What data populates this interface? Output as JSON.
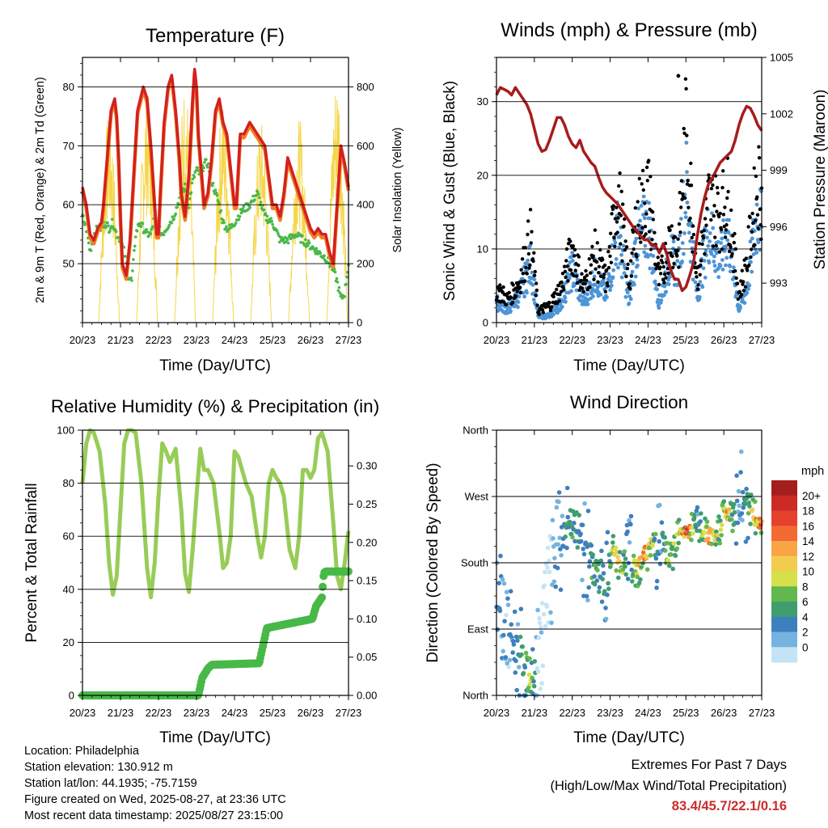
{
  "chart_data": [
    {
      "type": "line",
      "title": "Temperature (F)",
      "xlabel": "Time (Day/UTC)",
      "ylabel": "2m & 9m T (Red, Orange) & 2m Td (Green)",
      "y2label": "Solar Insolation (Yellow)",
      "x_ticks": [
        "20/23",
        "21/23",
        "22/23",
        "23/23",
        "24/23",
        "25/23",
        "26/23",
        "27/23"
      ],
      "xlim": [
        0,
        7
      ],
      "ylim": [
        40,
        85
      ],
      "y_ticks": [
        50,
        60,
        70,
        80
      ],
      "y2lim": [
        0,
        900
      ],
      "y2_ticks": [
        0,
        200,
        400,
        600,
        800
      ],
      "grid": "horizontal",
      "colors": {
        "t2m": "#d42020",
        "t9m": "#f08020",
        "td": "#48b848",
        "solar": "#f5d64a"
      },
      "series": [
        {
          "name": "2m T",
          "x": [
            0,
            0.1,
            0.2,
            0.3,
            0.4,
            0.5,
            0.55,
            0.65,
            0.75,
            0.85,
            0.9,
            0.95,
            1.0,
            1.05,
            1.15,
            1.25,
            1.35,
            1.45,
            1.6,
            1.7,
            1.8,
            1.9,
            1.95,
            2.0,
            2.05,
            2.15,
            2.25,
            2.35,
            2.45,
            2.55,
            2.6,
            2.7,
            2.8,
            2.9,
            2.95,
            3.0,
            3.05,
            3.1,
            3.2,
            3.3,
            3.4,
            3.5,
            3.6,
            3.7,
            3.8,
            3.9,
            4.0,
            4.05,
            4.15,
            4.25,
            4.4,
            4.6,
            4.8,
            4.9,
            5.0,
            5.1,
            5.2,
            5.3,
            5.4,
            5.5,
            5.6,
            5.7,
            5.8,
            5.9,
            6.0,
            6.1,
            6.2,
            6.3,
            6.4,
            6.5,
            6.6,
            6.7,
            6.8,
            6.9,
            7.0
          ],
          "y": [
            63,
            60,
            55,
            54,
            56,
            57,
            60,
            68,
            76,
            78,
            75,
            68,
            58,
            50,
            48,
            54,
            65,
            76,
            80,
            78,
            70,
            60,
            55,
            55,
            62,
            74,
            80,
            82,
            76,
            68,
            62,
            58,
            65,
            78,
            83,
            80,
            72,
            68,
            60,
            62,
            68,
            76,
            78,
            74,
            72,
            66,
            60,
            60,
            72,
            72,
            74,
            72,
            70,
            65,
            60,
            60,
            58,
            62,
            68,
            66,
            64,
            62,
            60,
            58,
            56,
            55,
            56,
            55,
            55,
            52,
            50,
            60,
            70,
            67,
            63
          ]
        },
        {
          "name": "2m Td",
          "x": [
            0,
            0.1,
            0.2,
            0.3,
            0.4,
            0.5,
            0.6,
            0.7,
            0.8,
            0.9,
            1.0,
            1.1,
            1.2,
            1.3,
            1.4,
            1.5,
            1.6,
            1.7,
            1.8,
            1.9,
            2.0,
            2.1,
            2.2,
            2.3,
            2.4,
            2.5,
            2.6,
            2.7,
            2.8,
            2.9,
            3.0,
            3.1,
            3.2,
            3.3,
            3.4,
            3.5,
            3.6,
            3.7,
            3.8,
            3.9,
            4.0,
            4.2,
            4.4,
            4.6,
            4.8,
            5.0,
            5.2,
            5.4,
            5.6,
            5.8,
            6.0,
            6.2,
            6.4,
            6.6,
            6.7,
            6.8,
            6.9,
            7.0
          ],
          "y": [
            58,
            56,
            52,
            55,
            56,
            56,
            57,
            56,
            57,
            55,
            54,
            52,
            48,
            47,
            55,
            57,
            56,
            55,
            55,
            58,
            56,
            55,
            56,
            57,
            58,
            60,
            62,
            63,
            60,
            64,
            66,
            65,
            67,
            67,
            64,
            62,
            60,
            57,
            56,
            56,
            57,
            59,
            60,
            62,
            58,
            57,
            54,
            54,
            55,
            54,
            53,
            52,
            51,
            49,
            47,
            44,
            45,
            50
          ]
        },
        {
          "name": "Solar Insolation",
          "axis": "y2",
          "peaks_x": [
            0.7,
            1.7,
            2.7,
            3.7,
            4.7,
            5.7,
            6.7
          ],
          "peaks_y": [
            720,
            790,
            820,
            760,
            690,
            700,
            860
          ],
          "width": 0.55
        }
      ]
    },
    {
      "type": "scatter",
      "title": "Winds (mph) & Pressure (mb)",
      "xlabel": "Time (Day/UTC)",
      "ylabel": "Sonic Wind & Gust (Blue, Black)",
      "y2label": "Station Pressure (Maroon)",
      "x_ticks": [
        "20/23",
        "21/23",
        "22/23",
        "23/23",
        "24/23",
        "25/23",
        "26/23",
        "27/23"
      ],
      "xlim": [
        0,
        7
      ],
      "ylim": [
        0,
        36
      ],
      "y_ticks": [
        0,
        10,
        20,
        30
      ],
      "y2lim": [
        990.9,
        1005
      ],
      "y2_ticks": [
        993,
        996,
        999,
        1002,
        1005
      ],
      "grid": "horizontal",
      "colors": {
        "wind": "#4d94d6",
        "gust": "#000000",
        "pressure": "#a81c1c"
      },
      "gust_max": 33.5,
      "series": [
        {
          "name": "Sonic Wind",
          "profile_x": [
            0,
            0.3,
            0.6,
            0.9,
            1.1,
            1.4,
            1.7,
            2.0,
            2.3,
            2.6,
            2.9,
            3.2,
            3.5,
            3.7,
            4.0,
            4.3,
            4.6,
            4.8,
            5.0,
            5.3,
            5.6,
            5.9,
            6.1,
            6.4,
            6.6,
            6.9,
            7.0
          ],
          "profile_y": [
            3,
            2,
            4,
            9,
            1,
            1,
            3,
            8,
            3,
            7,
            4,
            14,
            3,
            12,
            15,
            3,
            10,
            8,
            21,
            4,
            14,
            9,
            14,
            2,
            5,
            17,
            14
          ]
        },
        {
          "name": "Gust",
          "profile_x": [
            0,
            0.3,
            0.6,
            0.9,
            1.1,
            1.4,
            1.7,
            2.0,
            2.3,
            2.6,
            2.9,
            3.2,
            3.5,
            3.7,
            4.0,
            4.3,
            4.6,
            4.8,
            5.0,
            5.3,
            5.6,
            5.9,
            6.1,
            6.4,
            6.6,
            6.9,
            7.0
          ],
          "profile_y": [
            6,
            4,
            7,
            15,
            2,
            3,
            6,
            13,
            6,
            12,
            7,
            23,
            7,
            18,
            23,
            7,
            15,
            13,
            33,
            8,
            21,
            19,
            22,
            5,
            10,
            25,
            22
          ]
        },
        {
          "name": "Station Pressure",
          "axis": "y2",
          "x": [
            0,
            0.1,
            0.2,
            0.3,
            0.4,
            0.5,
            0.6,
            0.7,
            0.8,
            0.9,
            1.0,
            1.1,
            1.2,
            1.3,
            1.4,
            1.5,
            1.6,
            1.7,
            1.8,
            1.9,
            2.0,
            2.1,
            2.2,
            2.3,
            2.4,
            2.5,
            2.6,
            2.7,
            2.8,
            2.9,
            3.0,
            3.1,
            3.2,
            3.3,
            3.4,
            3.5,
            3.6,
            3.7,
            3.8,
            3.9,
            4.0,
            4.1,
            4.2,
            4.3,
            4.4,
            4.5,
            4.6,
            4.7,
            4.8,
            4.9,
            5.0,
            5.1,
            5.2,
            5.3,
            5.4,
            5.5,
            5.6,
            5.7,
            5.8,
            5.9,
            6.0,
            6.1,
            6.2,
            6.3,
            6.4,
            6.5,
            6.6,
            6.7,
            6.8,
            6.9,
            7.0
          ],
          "y": [
            1003.0,
            1003.4,
            1003.3,
            1003.2,
            1003.0,
            1003.4,
            1003.1,
            1002.8,
            1002.5,
            1002.0,
            1001.2,
            1000.4,
            1000.0,
            1000.1,
            1000.6,
            1001.2,
            1001.8,
            1001.8,
            1001.4,
            1000.8,
            1000.4,
            1000.2,
            1000.6,
            1000.0,
            999.7,
            999.4,
            999.2,
            998.6,
            998.1,
            997.8,
            997.6,
            997.4,
            997.2,
            996.9,
            996.6,
            996.3,
            996.0,
            995.8,
            995.5,
            995.3,
            995.3,
            995.0,
            995.0,
            994.6,
            995.1,
            994.5,
            993.7,
            993.2,
            993.2,
            992.6,
            992.8,
            993.4,
            994.1,
            995.5,
            996.7,
            997.6,
            998.3,
            998.6,
            999.0,
            999.4,
            999.6,
            999.8,
            1000.0,
            1000.6,
            1001.4,
            1002.0,
            1002.4,
            1002.3,
            1001.9,
            1001.4,
            1001.1
          ]
        }
      ]
    },
    {
      "type": "line",
      "title": "Relative Humidity (%) & Precipitation (in)",
      "xlabel": "Time (Day/UTC)",
      "ylabel": "Percent & Total Rainfall",
      "x_ticks": [
        "20/23",
        "21/23",
        "22/23",
        "23/23",
        "24/23",
        "25/23",
        "26/23",
        "27/23"
      ],
      "xlim": [
        0,
        7
      ],
      "ylim": [
        0,
        100
      ],
      "y_ticks": [
        0,
        20,
        40,
        60,
        80,
        100
      ],
      "y2lim": [
        0,
        0.3467
      ],
      "y2_ticks": [
        "0.00",
        "0.05",
        "0.10",
        "0.15",
        "0.20",
        "0.25",
        "0.30"
      ],
      "grid": "horizontal",
      "colors": {
        "rh": "#98cc58",
        "precip": "#48b848"
      },
      "series": [
        {
          "name": "Relative Humidity",
          "x": [
            0,
            0.1,
            0.2,
            0.3,
            0.45,
            0.6,
            0.7,
            0.8,
            0.9,
            1.0,
            1.1,
            1.2,
            1.3,
            1.4,
            1.55,
            1.7,
            1.8,
            1.9,
            2.0,
            2.1,
            2.2,
            2.3,
            2.45,
            2.6,
            2.7,
            2.8,
            2.9,
            3.0,
            3.1,
            3.2,
            3.3,
            3.45,
            3.6,
            3.7,
            3.8,
            3.9,
            4.0,
            4.1,
            4.2,
            4.3,
            4.45,
            4.6,
            4.7,
            4.8,
            4.9,
            5.0,
            5.1,
            5.2,
            5.3,
            5.45,
            5.6,
            5.7,
            5.8,
            5.9,
            6.0,
            6.1,
            6.2,
            6.3,
            6.45,
            6.6,
            6.7,
            6.8,
            6.9,
            7.0
          ],
          "y": [
            80,
            95,
            100,
            99,
            92,
            72,
            50,
            38,
            45,
            70,
            95,
            100,
            100,
            99,
            80,
            48,
            37,
            50,
            75,
            95,
            92,
            88,
            93,
            70,
            46,
            39,
            55,
            75,
            93,
            85,
            85,
            80,
            62,
            48,
            50,
            60,
            92,
            90,
            85,
            80,
            75,
            60,
            52,
            60,
            80,
            85,
            82,
            80,
            75,
            55,
            48,
            60,
            85,
            85,
            82,
            85,
            97,
            99,
            92,
            65,
            45,
            40,
            50,
            62
          ]
        },
        {
          "name": "Total Rainfall",
          "axis": "y2",
          "x": [
            0,
            3.05,
            3.15,
            3.3,
            3.4,
            4.65,
            4.75,
            4.85,
            6.05,
            6.15,
            6.3,
            6.35,
            6.4,
            7.0
          ],
          "y": [
            0,
            0,
            0.023,
            0.035,
            0.04,
            0.042,
            0.065,
            0.088,
            0.1,
            0.117,
            0.128,
            0.16,
            0.162,
            0.162
          ]
        }
      ]
    },
    {
      "type": "scatter",
      "title": "Wind Direction",
      "xlabel": "Time (Day/UTC)",
      "ylabel": "Direction (Colored By Speed)",
      "x_ticks": [
        "20/23",
        "21/23",
        "22/23",
        "23/23",
        "24/23",
        "25/23",
        "26/23",
        "27/23"
      ],
      "xlim": [
        0,
        7
      ],
      "ylim": [
        0,
        360
      ],
      "y_tick_labels": [
        "North",
        "East",
        "South",
        "West",
        "North"
      ],
      "grid": "horizontal",
      "legend": {
        "title": "mph",
        "placement": "right",
        "labels": [
          "20+",
          "18",
          "16",
          "14",
          "12",
          "10",
          "8",
          "6",
          "4",
          "2",
          "0"
        ],
        "colors": [
          "#a51d1d",
          "#cc2a26",
          "#e6402e",
          "#f26b32",
          "#faa445",
          "#f2cc50",
          "#d6e04a",
          "#60b84e",
          "#3f9e6e",
          "#3e7fbf",
          "#76b3e0",
          "#c4e4f6"
        ]
      },
      "direction_profile": {
        "x": [
          0,
          0.3,
          0.6,
          0.8,
          1.0,
          1.3,
          1.6,
          1.8,
          2.0,
          2.2,
          2.4,
          2.6,
          2.9,
          3.1,
          3.3,
          3.5,
          3.7,
          3.9,
          4.2,
          4.4,
          4.6,
          4.8,
          5.0,
          5.2,
          5.5,
          5.8,
          6.0,
          6.2,
          6.4,
          6.6,
          6.8,
          7.0
        ],
        "y": [
          160,
          80,
          60,
          30,
          20,
          120,
          200,
          220,
          230,
          220,
          190,
          170,
          150,
          200,
          170,
          180,
          170,
          190,
          210,
          200,
          180,
          230,
          220,
          230,
          220,
          210,
          250,
          240,
          260,
          270,
          240,
          230
        ]
      },
      "speed_profile": {
        "x": [
          0,
          0.3,
          0.6,
          0.9,
          1.1,
          1.4,
          1.7,
          2.0,
          2.3,
          2.6,
          2.9,
          3.2,
          3.5,
          3.7,
          4.0,
          4.3,
          4.6,
          4.8,
          5.0,
          5.3,
          5.6,
          5.9,
          6.1,
          6.4,
          6.6,
          6.9,
          7.0
        ],
        "y": [
          3,
          2,
          4,
          9,
          1,
          1,
          3,
          8,
          3,
          7,
          4,
          14,
          3,
          12,
          15,
          3,
          10,
          8,
          21,
          4,
          14,
          9,
          14,
          2,
          5,
          17,
          14
        ]
      }
    }
  ],
  "station": {
    "location": "Location: Philadelphia",
    "elevation": "Station elevation: 130.912 m",
    "latlon": "Station lat/lon: 44.1935; -75.7159",
    "created": "Figure created on Wed, 2025-08-27, at 23:36 UTC",
    "recent": "Most recent data timestamp: 2025/08/27 23:15:00"
  },
  "extremes": {
    "heading": "Extremes For Past 7 Days",
    "subheading": "(High/Low/Max Wind/Total Precipitation)",
    "values": "83.4/45.7/22.1/0.16"
  }
}
